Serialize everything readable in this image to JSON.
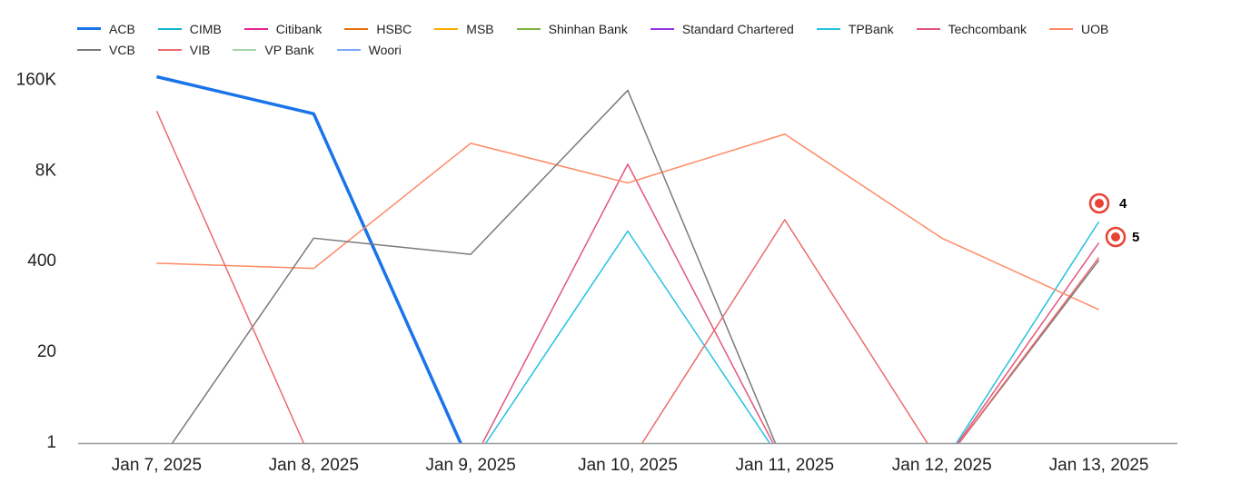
{
  "chart_data": {
    "type": "line",
    "categories": [
      "Jan 7, 2025",
      "Jan 8, 2025",
      "Jan 9, 2025",
      "Jan 10, 2025",
      "Jan 11, 2025",
      "Jan 12, 2025",
      "Jan 13, 2025"
    ],
    "series": [
      {
        "name": "ACB",
        "color": "#1a73e8",
        "values": [
          180000,
          53000,
          0,
          0,
          0,
          0,
          0
        ]
      },
      {
        "name": "CIMB",
        "color": "#12b5cb",
        "values": [
          0,
          0,
          0,
          0,
          0,
          0,
          0
        ]
      },
      {
        "name": "Citibank",
        "color": "#e52592",
        "values": [
          0,
          0,
          0,
          0,
          0,
          0,
          0
        ]
      },
      {
        "name": "HSBC",
        "color": "#e8710a",
        "values": [
          0,
          0,
          0,
          0,
          0,
          0,
          0
        ]
      },
      {
        "name": "MSB",
        "color": "#f9ab00",
        "values": [
          0,
          0,
          0,
          0,
          0,
          0,
          0
        ]
      },
      {
        "name": "Shinhan Bank",
        "color": "#7cb342",
        "values": [
          0,
          0,
          0,
          0,
          0,
          0,
          0
        ]
      },
      {
        "name": "Standard Chartered",
        "color": "#9334e6",
        "values": [
          0,
          0,
          0,
          0,
          0,
          0,
          0
        ]
      },
      {
        "name": "TPBank",
        "color": "#24c1e0",
        "values": [
          0,
          0,
          0,
          1100,
          0,
          0,
          1500
        ]
      },
      {
        "name": "Techcombank",
        "color": "#e2577a",
        "values": [
          0,
          0,
          0,
          10000,
          0,
          0,
          750
        ]
      },
      {
        "name": "UOB",
        "color": "#ff8a65",
        "values": [
          380,
          320,
          20000,
          5400,
          27000,
          870,
          82
        ]
      },
      {
        "name": "VCB",
        "color": "#7a7a7a",
        "values": [
          0,
          870,
          510,
          115000,
          0,
          0,
          420
        ]
      },
      {
        "name": "VIB",
        "color": "#ec6b6b",
        "values": [
          58000,
          0,
          0,
          0,
          1600,
          0,
          460
        ]
      },
      {
        "name": "VP Bank",
        "color": "#a5d6a7",
        "values": [
          0,
          0,
          0,
          0,
          0,
          0,
          0
        ]
      },
      {
        "name": "Woori",
        "color": "#7baaf7",
        "values": [
          0,
          0,
          0,
          0,
          0,
          0,
          0
        ]
      }
    ],
    "ylim": [
      1,
      200000
    ],
    "log_scale": true,
    "yticks": [
      1,
      20,
      400,
      {
        "value": 8000,
        "label": "8K"
      },
      {
        "value": 160000,
        "label": "160K"
      }
    ],
    "annotations": [
      "4",
      "5"
    ]
  }
}
